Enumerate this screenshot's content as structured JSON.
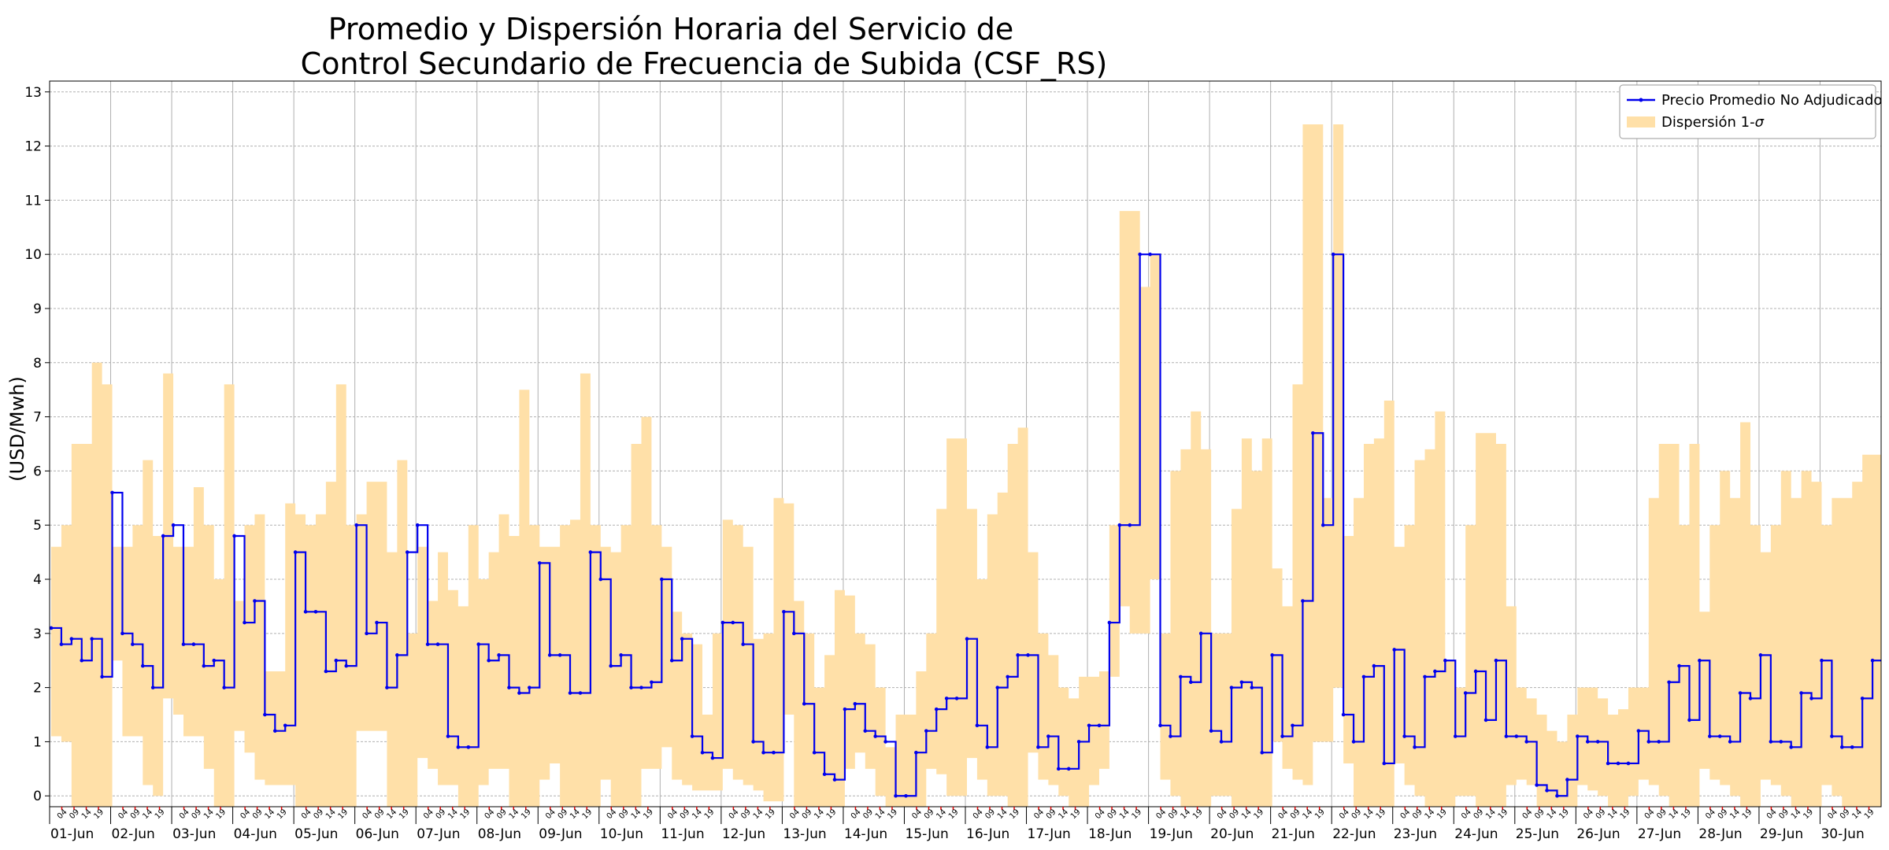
{
  "chart_data": {
    "type": "line",
    "title_line1": "Promedio y Dispersión Horaria del Servicio de",
    "title_line2": "Control Secundario de Frecuencia de Subida (CSF_RS)",
    "ylabel": "(USD/Mwh)",
    "xlabel": "",
    "ylim": [
      -0.2,
      13.2
    ],
    "yticks": [
      0,
      1,
      2,
      3,
      4,
      5,
      6,
      7,
      8,
      9,
      10,
      11,
      12,
      13
    ],
    "grid": true,
    "legend_position": "top-right",
    "legend": {
      "line_label": "Precio Promedio No Adjudicado",
      "band_label": "Dispersión 1-σ"
    },
    "colors": {
      "line": "#0000ee",
      "band": "#ffe0a8",
      "grid": "#b0b0b0",
      "hour_tick": "#e00000"
    },
    "days": [
      "01-Jun",
      "02-Jun",
      "03-Jun",
      "04-Jun",
      "05-Jun",
      "06-Jun",
      "07-Jun",
      "08-Jun",
      "09-Jun",
      "10-Jun",
      "11-Jun",
      "12-Jun",
      "13-Jun",
      "14-Jun",
      "15-Jun",
      "16-Jun",
      "17-Jun",
      "18-Jun",
      "19-Jun",
      "20-Jun",
      "21-Jun",
      "22-Jun",
      "23-Jun",
      "24-Jun",
      "25-Jun",
      "26-Jun",
      "27-Jun",
      "28-Jun",
      "29-Jun",
      "30-Jun"
    ],
    "hour_labels": [
      "04",
      "09",
      "14",
      "19"
    ],
    "series": [
      {
        "name": "Precio Promedio No Adjudicado",
        "points_per_day": 6,
        "values": [
          [
            3.1,
            2.8,
            2.9,
            2.5,
            2.9,
            2.2
          ],
          [
            5.6,
            3.0,
            2.8,
            2.4,
            2.0,
            4.8
          ],
          [
            5.0,
            2.8,
            2.8,
            2.4,
            2.5,
            2.0
          ],
          [
            4.8,
            3.2,
            3.6,
            1.5,
            1.2,
            1.3
          ],
          [
            4.5,
            3.4,
            3.4,
            2.3,
            2.5,
            2.4
          ],
          [
            5.0,
            3.0,
            3.2,
            2.0,
            2.6,
            4.5
          ],
          [
            5.0,
            2.8,
            2.8,
            1.1,
            0.9,
            0.9
          ],
          [
            2.8,
            2.5,
            2.6,
            2.0,
            1.9,
            2.0
          ],
          [
            4.3,
            2.6,
            2.6,
            1.9,
            1.9,
            4.5
          ],
          [
            4.0,
            2.4,
            2.6,
            2.0,
            2.0,
            2.1
          ],
          [
            4.0,
            2.5,
            2.9,
            1.1,
            0.8,
            0.7
          ],
          [
            3.2,
            3.2,
            2.8,
            1.0,
            0.8,
            0.8
          ],
          [
            3.4,
            3.0,
            1.7,
            0.8,
            0.4,
            0.3
          ],
          [
            1.6,
            1.7,
            1.2,
            1.1,
            1.0,
            0.0
          ],
          [
            0.0,
            0.8,
            1.2,
            1.6,
            1.8,
            1.8
          ],
          [
            2.9,
            1.3,
            0.9,
            2.0,
            2.2,
            2.6
          ],
          [
            2.6,
            0.9,
            1.1,
            0.5,
            0.5,
            1.0
          ],
          [
            1.3,
            1.3,
            3.2,
            5.0,
            5.0,
            10.0
          ],
          [
            10.0,
            1.3,
            1.1,
            2.2,
            2.1,
            3.0
          ],
          [
            1.2,
            1.0,
            2.0,
            2.1,
            2.0,
            0.8
          ],
          [
            2.6,
            1.1,
            1.3,
            3.6,
            6.7,
            5.0
          ],
          [
            10.0,
            1.5,
            1.0,
            2.2,
            2.4,
            0.6
          ],
          [
            2.7,
            1.1,
            0.9,
            2.2,
            2.3,
            2.5
          ],
          [
            1.1,
            1.9,
            2.3,
            1.4,
            2.5,
            1.1
          ],
          [
            1.1,
            1.0,
            0.2,
            0.1,
            0.0,
            0.3
          ],
          [
            1.1,
            1.0,
            1.0,
            0.6,
            0.6,
            0.6
          ],
          [
            1.2,
            1.0,
            1.0,
            2.1,
            2.4,
            1.4
          ],
          [
            2.5,
            1.1,
            1.1,
            1.0,
            1.9,
            1.8
          ],
          [
            2.6,
            1.0,
            1.0,
            0.9,
            1.9,
            1.8
          ],
          [
            2.5,
            1.1,
            0.9,
            0.9,
            1.8,
            2.5
          ]
        ]
      },
      {
        "name": "Dispersión 1-σ",
        "upper": [
          [
            4.6,
            5.0,
            6.5,
            6.5,
            8.0,
            7.6
          ],
          [
            4.6,
            4.6,
            5.0,
            6.2,
            4.8,
            7.8
          ],
          [
            4.6,
            4.6,
            5.7,
            5.0,
            4.0,
            7.6
          ],
          [
            3.6,
            5.0,
            5.2,
            2.3,
            2.3,
            5.4
          ],
          [
            5.2,
            5.0,
            5.2,
            5.8,
            7.6,
            5.0
          ],
          [
            5.2,
            5.8,
            5.8,
            4.5,
            6.2,
            3.0
          ],
          [
            4.6,
            3.6,
            4.5,
            3.8,
            3.5,
            5.0
          ],
          [
            4.0,
            4.5,
            5.2,
            4.8,
            7.5,
            5.0
          ],
          [
            4.6,
            4.6,
            5.0,
            5.1,
            7.8,
            5.0
          ],
          [
            4.6,
            4.5,
            5.0,
            6.5,
            7.0,
            5.0
          ],
          [
            4.6,
            3.4,
            3.0,
            2.8,
            1.5,
            3.0
          ],
          [
            5.1,
            5.0,
            4.6,
            2.9,
            3.0,
            5.5
          ],
          [
            5.4,
            3.6,
            3.0,
            2.0,
            2.6,
            3.8
          ],
          [
            3.7,
            3.0,
            2.8,
            2.0,
            0.9,
            1.5
          ],
          [
            1.5,
            2.3,
            3.0,
            5.3,
            6.6,
            6.6
          ],
          [
            5.3,
            4.0,
            5.2,
            5.6,
            6.5,
            6.8
          ],
          [
            4.5,
            3.0,
            2.6,
            2.0,
            1.8,
            2.2
          ],
          [
            2.2,
            2.3,
            5.0,
            10.8,
            10.8,
            9.4
          ],
          [
            10.0,
            3.0,
            6.0,
            6.4,
            7.1,
            6.4
          ],
          [
            3.0,
            3.0,
            5.3,
            6.6,
            6.0,
            6.6
          ],
          [
            4.2,
            3.5,
            7.6,
            12.4,
            12.4,
            5.5
          ],
          [
            12.4,
            4.8,
            5.5,
            6.5,
            6.6,
            7.3
          ],
          [
            4.6,
            5.0,
            6.2,
            6.4,
            7.1,
            2.5
          ],
          [
            2.0,
            5.0,
            6.7,
            6.7,
            6.5,
            3.5
          ],
          [
            2.0,
            1.8,
            1.5,
            1.2,
            1.0,
            1.5
          ],
          [
            2.0,
            2.0,
            1.8,
            1.5,
            1.6,
            2.0
          ],
          [
            2.0,
            5.5,
            6.5,
            6.5,
            5.0,
            6.5
          ],
          [
            3.4,
            5.0,
            6.0,
            5.5,
            6.9,
            5.0
          ],
          [
            4.5,
            5.0,
            6.0,
            5.5,
            6.0,
            5.8
          ],
          [
            5.0,
            5.5,
            5.5,
            5.8,
            6.3,
            6.3
          ]
        ],
        "lower": [
          [
            1.1,
            1.0,
            -0.2,
            -0.2,
            -0.2,
            -0.2
          ],
          [
            2.5,
            1.1,
            1.1,
            0.2,
            0.0,
            1.8
          ],
          [
            1.5,
            1.1,
            1.1,
            0.5,
            -0.2,
            -0.2
          ],
          [
            1.2,
            0.8,
            0.3,
            0.2,
            0.2,
            0.2
          ],
          [
            -0.2,
            -0.2,
            -0.2,
            -0.2,
            -0.2,
            -0.2
          ],
          [
            1.2,
            1.2,
            1.2,
            -0.2,
            -0.2,
            -0.2
          ],
          [
            0.7,
            0.5,
            0.2,
            0.2,
            -0.2,
            -0.2
          ],
          [
            0.2,
            0.5,
            0.5,
            -0.2,
            -0.2,
            -0.2
          ],
          [
            0.3,
            0.6,
            -0.2,
            -0.2,
            -0.2,
            -0.2
          ],
          [
            0.3,
            -0.2,
            -0.2,
            -0.2,
            0.5,
            0.5
          ],
          [
            0.9,
            0.3,
            0.2,
            0.1,
            0.1,
            0.1
          ],
          [
            0.5,
            0.3,
            0.2,
            0.1,
            -0.1,
            -0.1
          ],
          [
            1.5,
            -0.2,
            -0.2,
            -0.2,
            -0.2,
            -0.2
          ],
          [
            0.5,
            0.8,
            0.5,
            0.0,
            -0.2,
            -0.2
          ],
          [
            -0.2,
            -0.2,
            0.5,
            0.4,
            0.0,
            0.0
          ],
          [
            0.7,
            0.3,
            0.0,
            0.0,
            -0.2,
            -0.2
          ],
          [
            0.8,
            0.3,
            0.2,
            0.0,
            -0.2,
            -0.2
          ],
          [
            0.2,
            0.5,
            2.2,
            3.5,
            3.0,
            3.0
          ],
          [
            4.0,
            0.3,
            0.0,
            -0.2,
            -0.2,
            -0.2
          ],
          [
            0.0,
            0.0,
            -0.2,
            -0.2,
            -0.2,
            -0.2
          ],
          [
            1.0,
            0.5,
            0.3,
            0.2,
            1.0,
            1.0
          ],
          [
            2.0,
            0.6,
            -0.2,
            -0.2,
            -0.2,
            -0.2
          ],
          [
            0.6,
            0.2,
            0.0,
            -0.2,
            -0.2,
            -0.2
          ],
          [
            0.0,
            0.0,
            -0.2,
            -0.2,
            -0.2,
            0.2
          ],
          [
            0.3,
            0.2,
            -0.2,
            -0.2,
            -0.2,
            -0.2
          ],
          [
            0.2,
            0.1,
            0.0,
            -0.2,
            -0.2,
            0.0
          ],
          [
            0.3,
            0.2,
            0.0,
            -0.2,
            -0.2,
            -0.2
          ],
          [
            0.5,
            0.3,
            0.2,
            0.0,
            -0.2,
            -0.2
          ],
          [
            0.3,
            0.2,
            0.0,
            -0.2,
            -0.2,
            -0.2
          ],
          [
            0.2,
            0.0,
            -0.2,
            -0.2,
            -0.2,
            -0.2
          ]
        ]
      }
    ]
  }
}
